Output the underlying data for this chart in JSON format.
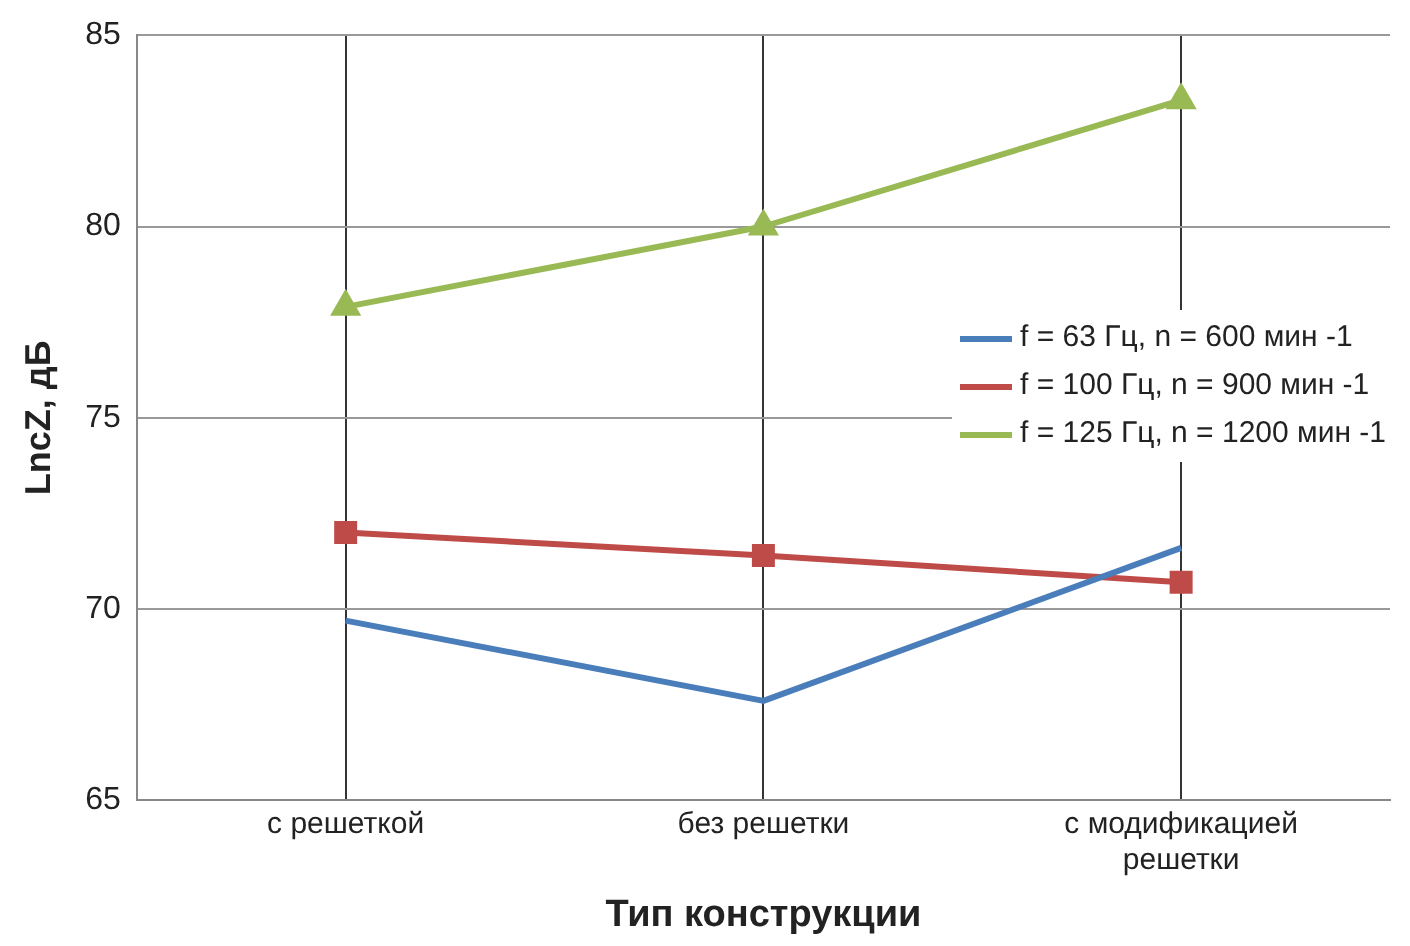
{
  "chart_data": {
    "type": "line",
    "xlabel": "Тип конструкции",
    "ylabel": "LncZ, дБ",
    "categories": [
      "с решеткой",
      "без решетки",
      "с модификацией решетки"
    ],
    "series": [
      {
        "name": "f = 63 Гц, n = 600 мин -1",
        "color": "#4a7ebb",
        "values": [
          69.7,
          67.6,
          71.6
        ],
        "marker": "none"
      },
      {
        "name": "f = 100 Гц, n = 900 мин -1",
        "color": "#be4b48",
        "values": [
          72.0,
          71.4,
          70.7
        ],
        "marker": "square"
      },
      {
        "name": "f = 125 Гц, n = 1200 мин -1",
        "color": "#98b954",
        "values": [
          77.9,
          80.0,
          83.3
        ],
        "marker": "triangle"
      }
    ],
    "ylim": [
      65,
      85
    ],
    "yticks": [
      65,
      70,
      75,
      80,
      85
    ],
    "grid": true,
    "legend": "right",
    "line_style": "solid"
  }
}
